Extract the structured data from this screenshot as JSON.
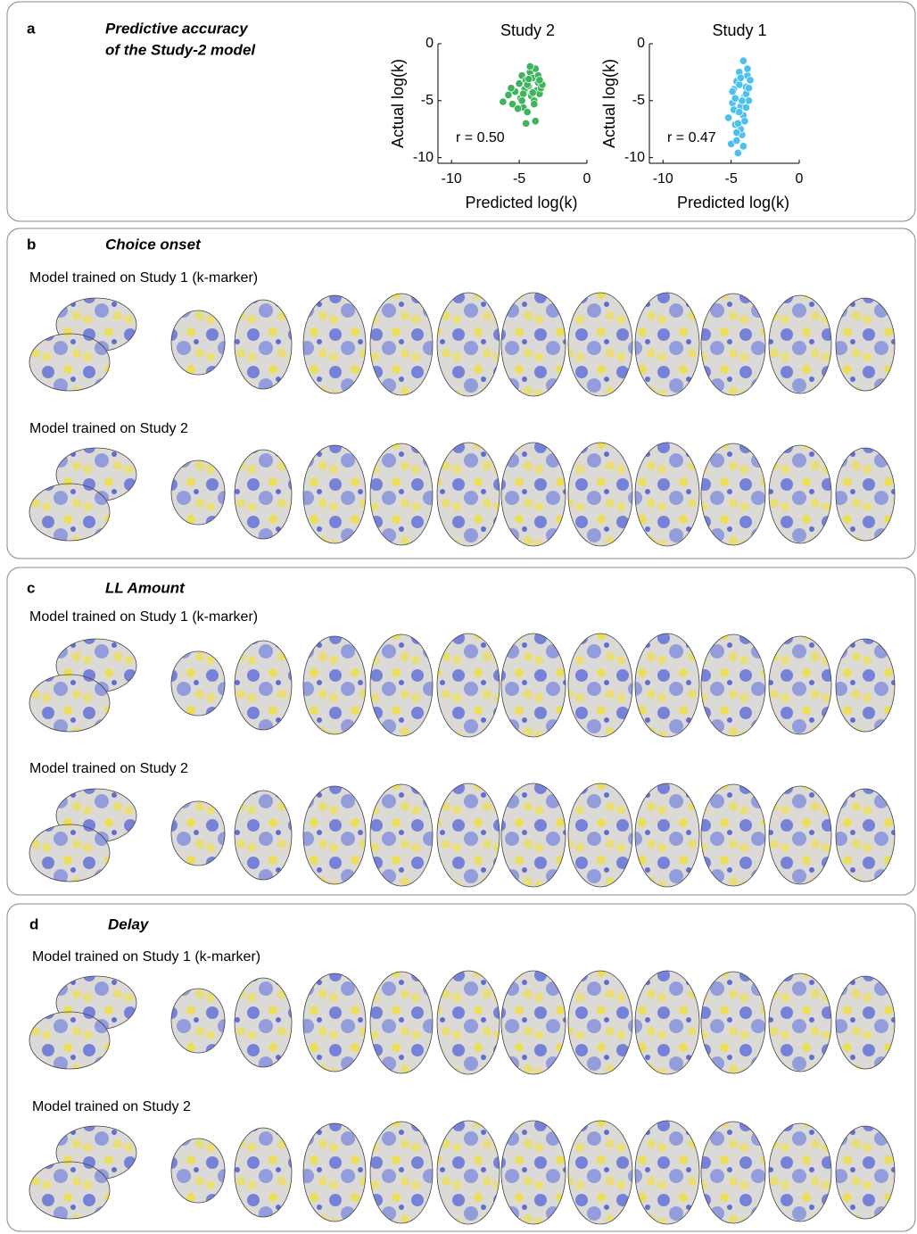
{
  "panels": [
    {
      "label": "a",
      "title_lines": [
        "Predictive accuracy",
        "of the Study-2 model"
      ]
    },
    {
      "label": "b",
      "title": "Choice onset",
      "rows": [
        "Model trained on Study 1 (k-marker)",
        "Model trained on Study 2"
      ]
    },
    {
      "label": "c",
      "title": "LL Amount",
      "rows": [
        "Model trained on Study 1 (k-marker)",
        "Model trained on Study 2"
      ]
    },
    {
      "label": "d",
      "title": "Delay",
      "rows": [
        "Model trained on Study 1 (k-marker)",
        "Model trained on Study 2"
      ]
    }
  ],
  "chart_data": [
    {
      "type": "scatter",
      "title": "Study 2",
      "xlabel": "Predicted log(k)",
      "ylabel": "Actual log(k)",
      "annotation": "r = 0.50",
      "color": "#3fb45c",
      "xlim": [
        -11,
        0
      ],
      "ylim": [
        -10.5,
        0
      ],
      "xticks": [
        -10,
        -5,
        0
      ],
      "yticks": [
        -10,
        -5,
        0
      ],
      "x": [
        -6.2,
        -5.8,
        -5.5,
        -5.3,
        -5.0,
        -4.9,
        -4.8,
        -4.7,
        -4.6,
        -4.5,
        -4.4,
        -4.3,
        -4.2,
        -4.1,
        -4.0,
        -3.9,
        -3.8,
        -3.7,
        -3.6,
        -3.5,
        -3.4,
        -3.3,
        -4.5,
        -4.2,
        -3.8,
        -5.1,
        -4.0,
        -3.6,
        -4.4,
        -4.7,
        -3.9,
        -4.3,
        -5.6,
        -4.8,
        -3.5
      ],
      "values": [
        -5.1,
        -4.5,
        -5.3,
        -4.2,
        -3.5,
        -4.8,
        -2.8,
        -5.6,
        -4.0,
        -3.2,
        -6.0,
        -3.7,
        -2.5,
        -4.6,
        -3.0,
        -5.0,
        -2.2,
        -4.1,
        -3.4,
        -4.4,
        -3.9,
        -3.6,
        -7.0,
        -2.0,
        -6.8,
        -5.7,
        -4.3,
        -2.8,
        -3.6,
        -4.4,
        -5.3,
        -3.1,
        -3.9,
        -5.0,
        -3.2
      ]
    },
    {
      "type": "scatter",
      "title": "Study 1",
      "xlabel": "Predicted log(k)",
      "ylabel": "Actual log(k)",
      "annotation": "r = 0.47",
      "color": "#4cc0ee",
      "xlim": [
        -11,
        0
      ],
      "ylim": [
        -10.5,
        0
      ],
      "xticks": [
        -10,
        -5,
        0
      ],
      "yticks": [
        -10,
        -5,
        0
      ],
      "x": [
        -5.2,
        -5.0,
        -4.9,
        -4.8,
        -4.7,
        -4.6,
        -4.5,
        -4.4,
        -4.3,
        -4.2,
        -4.1,
        -4.0,
        -3.9,
        -3.8,
        -3.7,
        -3.6,
        -4.5,
        -4.3,
        -4.1,
        -3.9,
        -4.8,
        -4.6,
        -4.4,
        -4.2,
        -4.0,
        -3.8,
        -4.7,
        -4.5,
        -4.3,
        -3.9,
        -4.9,
        -4.1,
        -4.4,
        -3.7,
        -4.6
      ],
      "values": [
        -6.5,
        -8.8,
        -5.2,
        -4.0,
        -7.1,
        -3.3,
        -6.0,
        -2.5,
        -5.5,
        -8.0,
        -1.5,
        -4.6,
        -3.8,
        -2.8,
        -5.0,
        -3.2,
        -9.6,
        -7.5,
        -6.3,
        -4.4,
        -5.8,
        -8.5,
        -3.6,
        -5.0,
        -6.8,
        -2.2,
        -4.8,
        -7.0,
        -3.0,
        -5.6,
        -4.2,
        -9.0,
        -6.0,
        -3.9,
        -7.8
      ]
    }
  ]
}
